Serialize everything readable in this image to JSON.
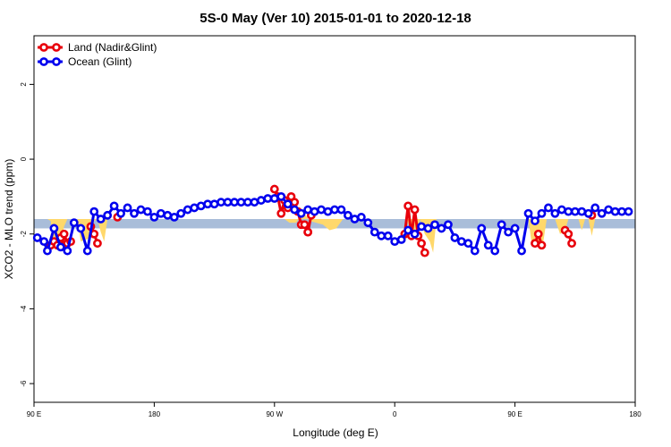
{
  "chart_data": {
    "type": "line",
    "title": "5S-0 May (Ver 10)   2015-01-01 to 2020-12-18",
    "xlabel": "Longitude (deg E)",
    "ylabel": "XCO2 - MLO trend (ppm)",
    "xlim": [
      0,
      360
    ],
    "ylim": [
      -6.5,
      3.3
    ],
    "x_ticks": [
      {
        "value": 0,
        "label": "90 E"
      },
      {
        "value": 72,
        "label": "180"
      },
      {
        "value": 144,
        "label": "90 W"
      },
      {
        "value": 216,
        "label": "0"
      },
      {
        "value": 288,
        "label": "90 E"
      },
      {
        "value": 360,
        "label": "180"
      }
    ],
    "y_ticks": [
      {
        "value": 2,
        "label": "2"
      },
      {
        "value": 0,
        "label": "0"
      },
      {
        "value": -2,
        "label": "-2"
      },
      {
        "value": -4,
        "label": "-4"
      },
      {
        "value": -6,
        "label": "-6"
      }
    ],
    "reference_band": {
      "ymin": -1.85,
      "ymax": -1.6,
      "color": "#a9bdd9"
    },
    "land_fills": [
      {
        "x": [
          8,
          10,
          12,
          16,
          18,
          20
        ],
        "y": [
          -1.6,
          -1.65,
          -2.3,
          -2.3,
          -1.8,
          -1.6
        ]
      },
      {
        "x": [
          26,
          28,
          34,
          36,
          38
        ],
        "y": [
          -1.6,
          -2.2,
          -2.1,
          -1.65,
          -1.6
        ]
      },
      {
        "x": [
          38,
          40,
          42,
          44
        ],
        "y": [
          -1.6,
          -1.95,
          -2.2,
          -1.6
        ]
      },
      {
        "x": [
          150,
          153,
          157,
          161,
          165,
          169,
          173,
          177,
          181,
          185
        ],
        "y": [
          -1.6,
          -1.7,
          -1.7,
          -1.4,
          -1.65,
          -1.7,
          -1.75,
          -1.9,
          -1.85,
          -1.6
        ]
      },
      {
        "x": [
          223,
          226,
          229,
          231,
          234,
          237,
          239,
          241
        ],
        "y": [
          -1.6,
          -1.95,
          -2.05,
          -1.6,
          -2.0,
          -2.2,
          -2.5,
          -1.6
        ]
      },
      {
        "x": [
          296,
          298,
          303,
          305,
          307
        ],
        "y": [
          -1.6,
          -2.25,
          -2.3,
          -2.2,
          -1.6
        ]
      },
      {
        "x": [
          312,
          315,
          318,
          320
        ],
        "y": [
          -1.6,
          -2.0,
          -1.9,
          -1.6
        ]
      },
      {
        "x": [
          326,
          328,
          330
        ],
        "y": [
          -1.6,
          -1.9,
          -1.6
        ]
      },
      {
        "x": [
          332,
          334,
          336,
          338
        ],
        "y": [
          -1.6,
          -2.05,
          -1.6,
          -1.6
        ]
      }
    ],
    "series": [
      {
        "name": "Land (Nadir&Glint)",
        "color": "#e8000b",
        "segments": [
          {
            "x": [
              10,
              12,
              14,
              16,
              18
            ],
            "y": [
              -2.3,
              -2.2,
              -2.3,
              -2.1,
              -2.3
            ]
          },
          {
            "x": [
              18,
              20,
              22
            ],
            "y": [
              -2.0,
              -2.25,
              -2.2
            ]
          },
          {
            "x": [
              34,
              36,
              38
            ],
            "y": [
              -1.8,
              -2.0,
              -2.25
            ]
          },
          {
            "x": [
              50
            ],
            "y": [
              -1.55
            ]
          },
          {
            "x": [
              144,
              146,
              148,
              150,
              152,
              154,
              156,
              158,
              160,
              162,
              164
            ],
            "y": [
              -0.8,
              -1.0,
              -1.45,
              -1.1,
              -1.3,
              -1.0,
              -1.15,
              -1.4,
              -1.75,
              -1.75,
              -1.95
            ]
          },
          {
            "x": [
              164,
              166
            ],
            "y": [
              -1.95,
              -1.5
            ]
          },
          {
            "x": [
              222,
              224,
              226,
              228,
              230,
              232,
              234
            ],
            "y": [
              -2.0,
              -1.25,
              -2.05,
              -1.35,
              -2.05,
              -2.25,
              -2.5
            ]
          },
          {
            "x": [
              300,
              302,
              304
            ],
            "y": [
              -2.25,
              -2.0,
              -2.3
            ]
          },
          {
            "x": [
              318,
              320,
              322
            ],
            "y": [
              -1.9,
              -2.0,
              -2.25
            ]
          },
          {
            "x": [
              334
            ],
            "y": [
              -1.5
            ]
          }
        ]
      },
      {
        "name": "Ocean (Glint)",
        "color": "#0000ee",
        "points": [
          [
            2,
            -2.1
          ],
          [
            6,
            -2.2
          ],
          [
            8,
            -2.45
          ],
          [
            12,
            -1.85
          ],
          [
            16,
            -2.35
          ],
          [
            20,
            -2.45
          ],
          [
            24,
            -1.7
          ],
          [
            28,
            -1.85
          ],
          [
            32,
            -2.45
          ],
          [
            36,
            -1.4
          ],
          [
            40,
            -1.6
          ],
          [
            44,
            -1.5
          ],
          [
            48,
            -1.25
          ],
          [
            52,
            -1.45
          ],
          [
            56,
            -1.3
          ],
          [
            60,
            -1.45
          ],
          [
            64,
            -1.35
          ],
          [
            68,
            -1.4
          ],
          [
            72,
            -1.55
          ],
          [
            76,
            -1.45
          ],
          [
            80,
            -1.5
          ],
          [
            84,
            -1.55
          ],
          [
            88,
            -1.45
          ],
          [
            92,
            -1.35
          ],
          [
            96,
            -1.3
          ],
          [
            100,
            -1.25
          ],
          [
            104,
            -1.2
          ],
          [
            108,
            -1.2
          ],
          [
            112,
            -1.15
          ],
          [
            116,
            -1.15
          ],
          [
            120,
            -1.15
          ],
          [
            124,
            -1.15
          ],
          [
            128,
            -1.15
          ],
          [
            132,
            -1.15
          ],
          [
            136,
            -1.1
          ],
          [
            140,
            -1.05
          ],
          [
            144,
            -1.05
          ],
          [
            148,
            -1.0
          ],
          [
            152,
            -1.2
          ],
          [
            156,
            -1.35
          ],
          [
            160,
            -1.45
          ],
          [
            164,
            -1.35
          ],
          [
            168,
            -1.4
          ],
          [
            172,
            -1.35
          ],
          [
            176,
            -1.4
          ],
          [
            180,
            -1.35
          ],
          [
            184,
            -1.35
          ],
          [
            188,
            -1.5
          ],
          [
            192,
            -1.6
          ],
          [
            196,
            -1.55
          ],
          [
            200,
            -1.7
          ],
          [
            204,
            -1.95
          ],
          [
            208,
            -2.05
          ],
          [
            212,
            -2.05
          ],
          [
            216,
            -2.2
          ],
          [
            220,
            -2.15
          ],
          [
            224,
            -1.9
          ],
          [
            228,
            -2.0
          ],
          [
            232,
            -1.8
          ],
          [
            236,
            -1.85
          ],
          [
            240,
            -1.75
          ],
          [
            244,
            -1.85
          ],
          [
            248,
            -1.75
          ],
          [
            252,
            -2.1
          ],
          [
            256,
            -2.2
          ],
          [
            260,
            -2.25
          ],
          [
            264,
            -2.45
          ],
          [
            268,
            -1.85
          ],
          [
            272,
            -2.3
          ],
          [
            276,
            -2.45
          ],
          [
            280,
            -1.75
          ],
          [
            284,
            -1.95
          ],
          [
            288,
            -1.85
          ],
          [
            292,
            -2.45
          ],
          [
            296,
            -1.45
          ],
          [
            300,
            -1.65
          ],
          [
            304,
            -1.45
          ],
          [
            308,
            -1.3
          ],
          [
            312,
            -1.45
          ],
          [
            316,
            -1.35
          ],
          [
            320,
            -1.4
          ],
          [
            324,
            -1.4
          ],
          [
            328,
            -1.4
          ],
          [
            332,
            -1.45
          ],
          [
            336,
            -1.3
          ],
          [
            340,
            -1.45
          ],
          [
            344,
            -1.35
          ],
          [
            348,
            -1.4
          ],
          [
            352,
            -1.4
          ],
          [
            356,
            -1.4
          ]
        ]
      }
    ],
    "legend": {
      "position": "top-left"
    },
    "grid": false
  }
}
